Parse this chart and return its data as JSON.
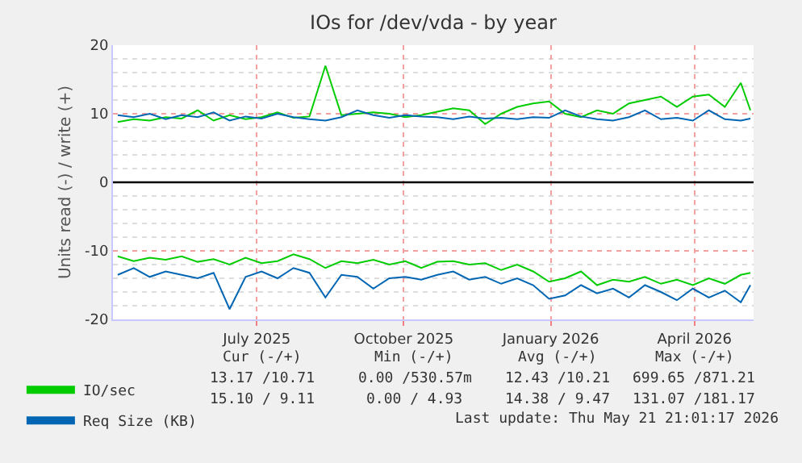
{
  "chart_data": {
    "type": "line",
    "title": "IOs for /dev/vda - by year",
    "ylabel": "Units read (-) / write (+)",
    "x": [
      "2025-04-05",
      "2025-04-15",
      "2025-04-25",
      "2025-05-05",
      "2025-05-15",
      "2025-05-25",
      "2025-06-04",
      "2025-06-14",
      "2025-06-24",
      "2025-07-04",
      "2025-07-14",
      "2025-07-24",
      "2025-08-03",
      "2025-08-13",
      "2025-08-23",
      "2025-09-02",
      "2025-09-12",
      "2025-09-22",
      "2025-10-02",
      "2025-10-12",
      "2025-10-22",
      "2025-11-01",
      "2025-11-11",
      "2025-11-21",
      "2025-12-01",
      "2025-12-11",
      "2025-12-21",
      "2025-12-31",
      "2026-01-10",
      "2026-01-20",
      "2026-01-30",
      "2026-02-09",
      "2026-02-19",
      "2026-03-01",
      "2026-03-11",
      "2026-03-21",
      "2026-03-31",
      "2026-04-10",
      "2026-04-20",
      "2026-04-30",
      "2026-05-06"
    ],
    "series": [
      {
        "name": "IO/sec",
        "color": "#00cc00",
        "values": [
          8.8,
          9.2,
          9.0,
          9.5,
          9.3,
          10.5,
          9.0,
          9.8,
          9.2,
          9.5,
          10.2,
          9.4,
          9.6,
          17.0,
          9.8,
          10.0,
          10.2,
          10.0,
          9.5,
          9.8,
          10.3,
          10.8,
          10.5,
          8.5,
          10.0,
          11.0,
          11.5,
          11.8,
          10.0,
          9.5,
          10.5,
          10.0,
          11.5,
          12.0,
          12.5,
          11.0,
          12.5,
          12.8,
          11.0,
          14.5,
          10.5
        ]
      },
      {
        "name": "Req Size (KB)",
        "color": "#0066b3",
        "values": [
          9.8,
          9.5,
          10.0,
          9.2,
          9.8,
          9.5,
          10.2,
          9.0,
          9.6,
          9.3,
          10.0,
          9.5,
          9.2,
          9.0,
          9.5,
          10.5,
          9.8,
          9.4,
          9.8,
          9.6,
          9.5,
          9.2,
          9.6,
          9.3,
          9.4,
          9.2,
          9.5,
          9.4,
          10.5,
          9.6,
          9.2,
          9.0,
          9.5,
          10.5,
          9.2,
          9.4,
          9.0,
          10.5,
          9.2,
          9.0,
          9.3
        ]
      },
      {
        "color": "#00cc00",
        "values": [
          -10.8,
          -11.5,
          -11.0,
          -11.3,
          -10.8,
          -11.6,
          -11.2,
          -12.0,
          -11.0,
          -11.8,
          -11.5,
          -10.5,
          -11.2,
          -12.5,
          -11.5,
          -11.8,
          -11.3,
          -12.0,
          -11.5,
          -12.5,
          -11.6,
          -11.5,
          -12.0,
          -11.8,
          -12.8,
          -12.0,
          -13.0,
          -14.5,
          -14.0,
          -13.0,
          -15.0,
          -14.2,
          -14.5,
          -13.8,
          -14.8,
          -14.2,
          -15.0,
          -14.0,
          -14.8,
          -13.5,
          -13.2
        ]
      },
      {
        "color": "#0066b3",
        "values": [
          -13.5,
          -12.5,
          -13.8,
          -13.0,
          -13.5,
          -14.0,
          -13.2,
          -18.5,
          -13.8,
          -13.0,
          -14.0,
          -12.5,
          -13.2,
          -16.8,
          -13.5,
          -13.8,
          -15.5,
          -14.0,
          -13.8,
          -14.2,
          -13.5,
          -13.0,
          -14.2,
          -13.8,
          -14.8,
          -14.0,
          -15.0,
          -17.0,
          -16.5,
          -15.0,
          -16.2,
          -15.5,
          -16.8,
          -15.0,
          -16.0,
          -17.2,
          -15.5,
          -16.8,
          -15.8,
          -17.5,
          -15.0
        ]
      }
    ],
    "xlim": [
      "2025-04-02",
      "2026-05-08"
    ],
    "xticks": [
      {
        "value": "2025-07-01",
        "label": "July 2025"
      },
      {
        "value": "2025-10-01",
        "label": "October 2025"
      },
      {
        "value": "2026-01-01",
        "label": "January 2026"
      },
      {
        "value": "2026-04-01",
        "label": "April 2026"
      }
    ],
    "ylim": [
      -20,
      20
    ],
    "yticks": [
      -20,
      -10,
      0,
      10,
      20
    ],
    "grid": true,
    "legend": "bottom left",
    "ref_lines": [
      {
        "axis": "y",
        "value": 0,
        "color": "#000000"
      }
    ],
    "annotations": [
      "Cur (-/+)",
      "Min (-/+)",
      "Avg (-/+)",
      "Max (-/+)",
      "13.17 /10.71",
      "0.00 /530.57m",
      "12.43 /10.21",
      "699.65 /871.21",
      "15.10 / 9.11",
      "0.00 / 4.93",
      "14.38 / 9.47",
      "131.07 /181.17",
      "Last update: Thu May 21 21:01:17 2026"
    ]
  }
}
